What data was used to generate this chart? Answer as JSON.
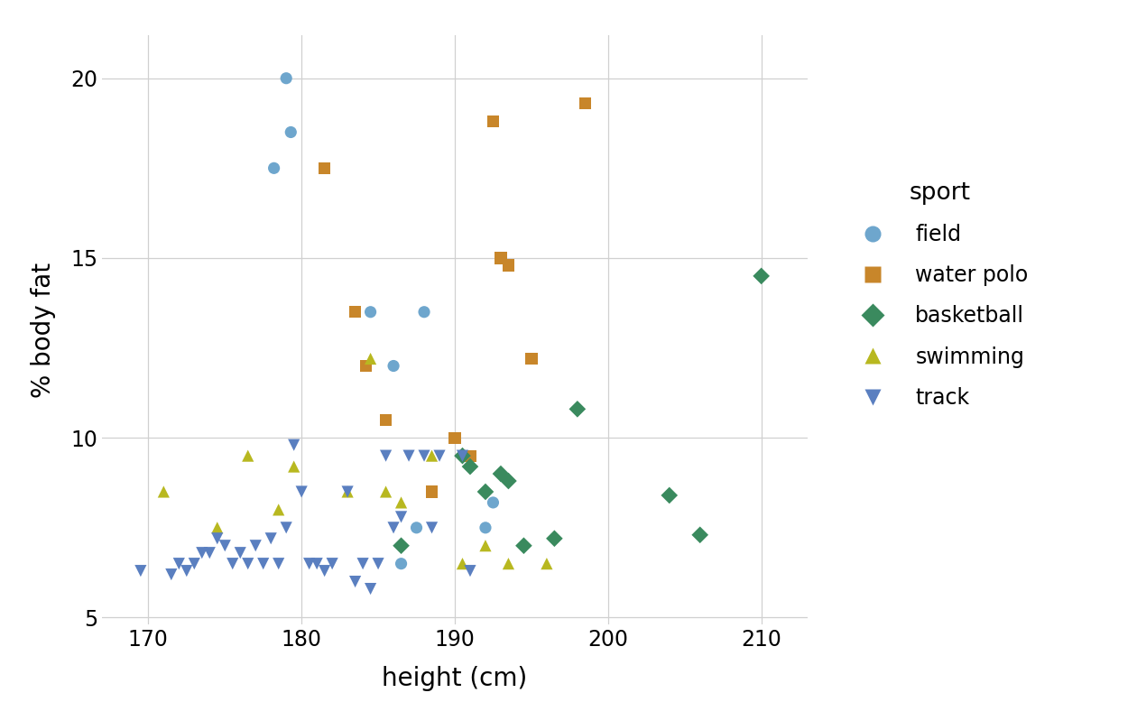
{
  "field": {
    "height": [
      179.0,
      179.3,
      178.2,
      184.5,
      186.0,
      188.0,
      187.5,
      186.5,
      192.0,
      192.5
    ],
    "body_fat": [
      20.0,
      18.5,
      17.5,
      13.5,
      12.0,
      13.5,
      7.5,
      6.5,
      7.5,
      8.2
    ],
    "color": "#6EA6CD",
    "marker": "o",
    "label": "field"
  },
  "water_polo": {
    "height": [
      181.5,
      183.5,
      184.2,
      185.5,
      188.5,
      190.0,
      191.0,
      192.5,
      193.0,
      193.5,
      195.0,
      198.5
    ],
    "body_fat": [
      17.5,
      13.5,
      12.0,
      10.5,
      8.5,
      10.0,
      9.5,
      18.8,
      15.0,
      14.8,
      12.2,
      19.3
    ],
    "color": "#C8862A",
    "marker": "s",
    "label": "water polo"
  },
  "basketball": {
    "height": [
      186.5,
      190.5,
      191.0,
      192.0,
      193.0,
      193.5,
      194.5,
      196.5,
      198.0,
      204.0,
      206.0,
      210.0
    ],
    "body_fat": [
      7.0,
      9.5,
      9.2,
      8.5,
      9.0,
      8.8,
      7.0,
      7.2,
      10.8,
      8.4,
      7.3,
      14.5
    ],
    "color": "#3A8A5E",
    "marker": "D",
    "label": "basketball"
  },
  "swimming": {
    "height": [
      171.0,
      174.5,
      176.5,
      178.5,
      179.5,
      183.0,
      184.5,
      185.5,
      186.5,
      188.5,
      190.5,
      192.0,
      193.5,
      196.0
    ],
    "body_fat": [
      8.5,
      7.5,
      9.5,
      8.0,
      9.2,
      8.5,
      12.2,
      8.5,
      8.2,
      9.5,
      6.5,
      7.0,
      6.5,
      6.5
    ],
    "color": "#B8B820",
    "marker": "^",
    "label": "swimming"
  },
  "track": {
    "height": [
      169.5,
      171.5,
      172.0,
      172.5,
      173.0,
      173.5,
      174.0,
      174.5,
      175.0,
      175.5,
      176.0,
      176.5,
      177.0,
      177.5,
      178.0,
      178.5,
      179.0,
      179.5,
      180.0,
      180.5,
      181.0,
      181.5,
      182.0,
      183.0,
      183.5,
      184.0,
      184.5,
      185.0,
      185.5,
      186.0,
      186.5,
      187.0,
      188.0,
      188.5,
      189.0,
      190.5,
      191.0
    ],
    "body_fat": [
      6.3,
      6.2,
      6.5,
      6.3,
      6.5,
      6.8,
      6.8,
      7.2,
      7.0,
      6.5,
      6.8,
      6.5,
      7.0,
      6.5,
      7.2,
      6.5,
      7.5,
      9.8,
      8.5,
      6.5,
      6.5,
      6.3,
      6.5,
      8.5,
      6.0,
      6.5,
      5.8,
      6.5,
      9.5,
      7.5,
      7.8,
      9.5,
      9.5,
      7.5,
      9.5,
      9.5,
      6.3
    ],
    "color": "#5A7FC0",
    "marker": "v",
    "label": "track"
  },
  "xlim": [
    167,
    213
  ],
  "ylim": [
    4.8,
    21.2
  ],
  "xticks": [
    170,
    180,
    190,
    200,
    210
  ],
  "yticks": [
    5,
    10,
    15,
    20
  ],
  "xlabel": "height (cm)",
  "ylabel": "% body fat",
  "legend_title": "sport",
  "background_color": "#ffffff",
  "grid_color": "#d0d0d0"
}
